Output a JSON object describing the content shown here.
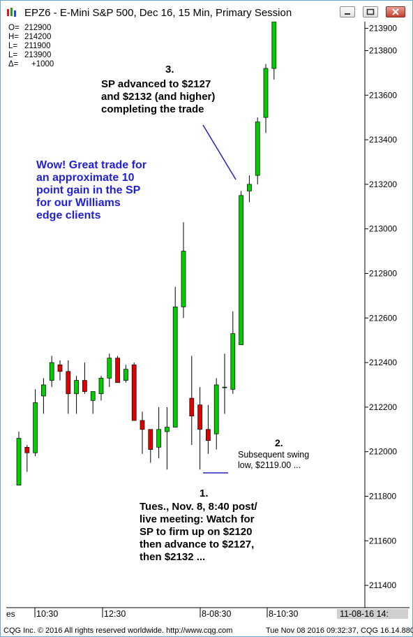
{
  "window": {
    "title": "EPZ6 - E-Mini S&P 500, Dec 16, 15 Min, Primary Session"
  },
  "ohlc_box": {
    "lines": [
      {
        "label": "O=",
        "value": "212900"
      },
      {
        "label": "H=",
        "value": "214200"
      },
      {
        "label": "L=",
        "value": "211900"
      },
      {
        "label": "L=",
        "value": "213900"
      },
      {
        "label": "Δ=",
        "value": "+1000"
      }
    ]
  },
  "annotations": {
    "note3_number": "3.",
    "note3_lines": [
      "SP advanced to $2127",
      "and $2132 (and higher)",
      "completing the trade"
    ],
    "promo_lines": [
      "Wow! Great trade for",
      "an approximate 10",
      "point gain in the SP",
      "for our Williams",
      "edge clients"
    ],
    "note2_number": "2.",
    "note2_lines": [
      "Subsequent swing",
      "low, $2119.00 ..."
    ],
    "note1_number": "1.",
    "note1_lines": [
      "Tues., Nov. 8, 8:40 post/",
      "live meeting: Watch for",
      "SP to firm up on $2120",
      "then advance to $2127,",
      "then $2132 ..."
    ]
  },
  "chart_data": {
    "type": "candlestick",
    "title": "EPZ6 - E-Mini S&P 500, Dec 16, 15 Min, Primary Session",
    "ylim": [
      211300,
      213930
    ],
    "y_ticks": [
      "213900",
      "213800",
      "213600",
      "213400",
      "213200",
      "213000",
      "212800",
      "212600",
      "212400",
      "212200",
      "212000",
      "211800",
      "211600",
      "211400"
    ],
    "x_ticks": [
      "10:30",
      "12:30",
      "8-08:30",
      "8-10:30"
    ],
    "x_edge_left": "es",
    "x_edge_right": "11-08-16 14:",
    "up_color": "#00cc00",
    "down_color": "#e00000",
    "candles": [
      {
        "o": 211850,
        "h": 212090,
        "l": 211850,
        "c": 212060
      },
      {
        "o": 212020,
        "h": 212030,
        "l": 211910,
        "c": 211995
      },
      {
        "o": 211995,
        "h": 212280,
        "l": 211980,
        "c": 212220
      },
      {
        "o": 212250,
        "h": 212330,
        "l": 212170,
        "c": 212300
      },
      {
        "o": 212320,
        "h": 212430,
        "l": 212290,
        "c": 212400
      },
      {
        "o": 212390,
        "h": 212410,
        "l": 212320,
        "c": 212360
      },
      {
        "o": 212360,
        "h": 212410,
        "l": 212170,
        "c": 212260
      },
      {
        "o": 212260,
        "h": 212340,
        "l": 212170,
        "c": 212320
      },
      {
        "o": 212320,
        "h": 212400,
        "l": 212260,
        "c": 212270
      },
      {
        "o": 212230,
        "h": 212270,
        "l": 212170,
        "c": 212270
      },
      {
        "o": 212260,
        "h": 212340,
        "l": 212230,
        "c": 212330
      },
      {
        "o": 212330,
        "h": 212440,
        "l": 212290,
        "c": 212420
      },
      {
        "o": 212420,
        "h": 212430,
        "l": 212310,
        "c": 212310
      },
      {
        "o": 212320,
        "h": 212390,
        "l": 212310,
        "c": 212370
      },
      {
        "o": 212390,
        "h": 212400,
        "l": 212140,
        "c": 212140
      },
      {
        "o": 212140,
        "h": 212180,
        "l": 211990,
        "c": 212100
      },
      {
        "o": 212100,
        "h": 212100,
        "l": 211950,
        "c": 212010
      },
      {
        "o": 212020,
        "h": 212200,
        "l": 211970,
        "c": 212100
      },
      {
        "o": 212090,
        "h": 212200,
        "l": 211920,
        "c": 212110
      },
      {
        "o": 212110,
        "h": 212740,
        "l": 212110,
        "c": 212650
      },
      {
        "o": 212650,
        "h": 213030,
        "l": 212600,
        "c": 212900
      },
      {
        "o": 212240,
        "h": 212430,
        "l": 212030,
        "c": 212160
      },
      {
        "o": 212210,
        "h": 212290,
        "l": 211920,
        "c": 212100
      },
      {
        "o": 212100,
        "h": 212210,
        "l": 211990,
        "c": 212050
      },
      {
        "o": 212080,
        "h": 212330,
        "l": 212010,
        "c": 212300
      },
      {
        "o": 212290,
        "h": 212440,
        "l": 212170,
        "c": 212290
      },
      {
        "o": 212280,
        "h": 212630,
        "l": 212260,
        "c": 212530
      },
      {
        "o": 212480,
        "h": 213170,
        "l": 212480,
        "c": 213150
      },
      {
        "o": 213170,
        "h": 213240,
        "l": 213120,
        "c": 213200
      },
      {
        "o": 213240,
        "h": 213500,
        "l": 213200,
        "c": 213480
      },
      {
        "o": 213500,
        "h": 213740,
        "l": 213430,
        "c": 213720
      },
      {
        "o": 213720,
        "h": 213930,
        "l": 213670,
        "c": 213930
      }
    ]
  }
}
